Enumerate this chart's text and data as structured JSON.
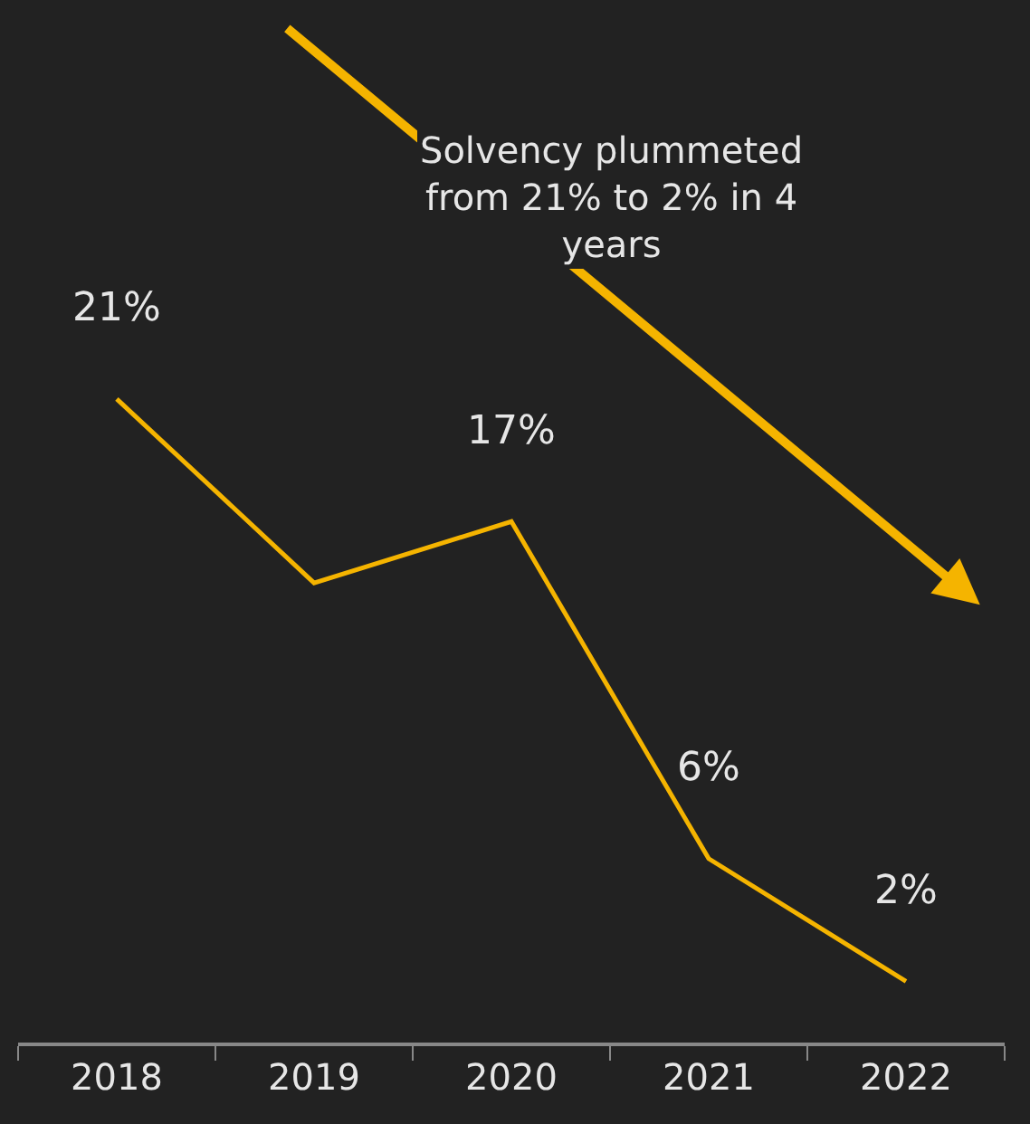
{
  "chart_data": {
    "type": "line",
    "categories": [
      "2018",
      "2019",
      "2020",
      "2021",
      "2022"
    ],
    "series": [
      {
        "color": "#f5b400",
        "values": [
          21,
          15,
          17,
          6,
          2
        ],
        "value_labels": [
          "21%",
          null,
          "17%",
          "6%",
          "2%"
        ]
      }
    ],
    "annotations": [
      "Solvency plummeted\nfrom 21% to 2% in 4\nyears"
    ],
    "grid": false,
    "legend": false,
    "marker": "none",
    "line_style": "solid",
    "tick_labels": "x"
  }
}
